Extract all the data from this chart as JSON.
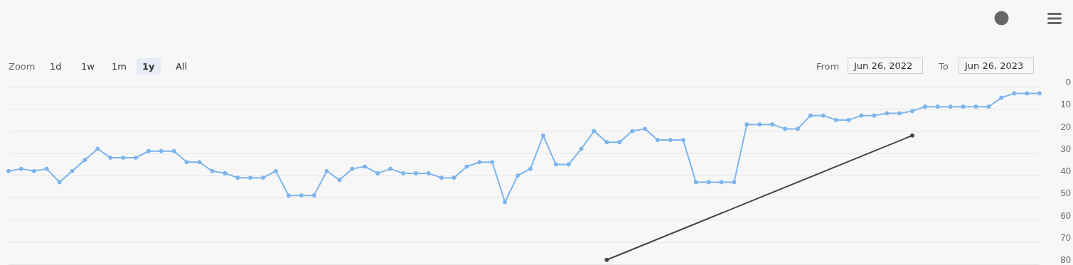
{
  "chart_data": {
    "type": "line",
    "categories": [
      null,
      null,
      null,
      null,
      null,
      null,
      null,
      null,
      null,
      null,
      null,
      null,
      null,
      null,
      null,
      null,
      null,
      null,
      null,
      null,
      null,
      null,
      null,
      null,
      null,
      null,
      null,
      null,
      null,
      null,
      null,
      null,
      null,
      null,
      null,
      null,
      null,
      null,
      null,
      null,
      null,
      null,
      null,
      null,
      null,
      null,
      null,
      null,
      null,
      null,
      null,
      null,
      null,
      null,
      null,
      null,
      null,
      null,
      null,
      null,
      null,
      null,
      null,
      null,
      null,
      null,
      null,
      null,
      null,
      null,
      null,
      null,
      null,
      null,
      null,
      null,
      null,
      null,
      null,
      null,
      null,
      null
    ],
    "series": [
      {
        "color": "#7cb5ec",
        "values": [
          38,
          37,
          38,
          37,
          43,
          38,
          33,
          28,
          32,
          32,
          32,
          29,
          29,
          29,
          34,
          34,
          38,
          39,
          41,
          41,
          41,
          38,
          49,
          49,
          49,
          38,
          42,
          37,
          36,
          39,
          37,
          39,
          39,
          39,
          41,
          41,
          36,
          34,
          34,
          52,
          40,
          37,
          22,
          35,
          35,
          28,
          20,
          25,
          25,
          20,
          19,
          24,
          24,
          24,
          43,
          43,
          43,
          43,
          17,
          17,
          17,
          19,
          19,
          13,
          13,
          15,
          15,
          13,
          13,
          12,
          12,
          11,
          9,
          9,
          9,
          9,
          9,
          9,
          5,
          3,
          3,
          3
        ]
      },
      {
        "color": "#434348",
        "values": [
          null,
          null,
          null,
          null,
          null,
          null,
          null,
          null,
          null,
          null,
          null,
          null,
          null,
          null,
          null,
          null,
          null,
          null,
          null,
          null,
          null,
          null,
          null,
          null,
          null,
          null,
          null,
          null,
          null,
          null,
          null,
          null,
          null,
          null,
          null,
          null,
          null,
          null,
          null,
          null,
          null,
          null,
          null,
          null,
          null,
          null,
          null,
          78,
          null,
          null,
          null,
          null,
          null,
          null,
          null,
          null,
          null,
          null,
          null,
          null,
          null,
          null,
          null,
          null,
          null,
          null,
          null,
          null,
          null,
          null,
          null,
          22,
          null,
          null,
          null,
          null,
          null,
          null,
          null,
          null,
          null,
          null
        ]
      }
    ],
    "ylim": [
      80,
      0
    ],
    "yticks": [
      0,
      10,
      20,
      30,
      40,
      50,
      60,
      70,
      80
    ],
    "grid": "y",
    "marker": "circle",
    "tick_labels": "y",
    "line_style": "solid",
    "annotations": [
      "Zoom",
      "1d",
      "1w",
      "1m",
      "1y",
      "All",
      "From",
      "Jun 26, 2022",
      "To",
      "Jun 26, 2023"
    ]
  }
}
